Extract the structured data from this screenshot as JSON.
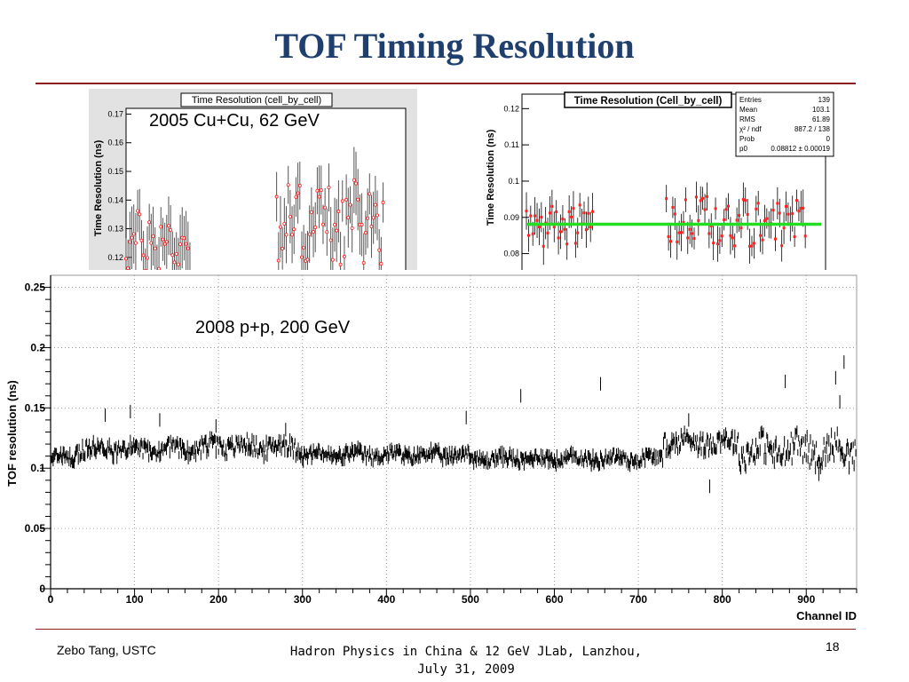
{
  "slide": {
    "title": "TOF Timing Resolution",
    "footer_left": "Zebo Tang, USTC",
    "footer_center_line1": "Hadron Physics in China & 12 GeV JLab, Lanzhou,",
    "footer_center_line2": "July 31, 2009",
    "page_number": "18"
  },
  "colors": {
    "title": "#1f3f6e",
    "rule": "#8b1f1f",
    "fit_line": "#22dd22",
    "marker_red": "#ff2020"
  },
  "chart_data": [
    {
      "type": "scatter",
      "title": "Time Resolution (cell_by_cell)",
      "annotation": "2005 Cu+Cu, 62 GeV",
      "ylabel": "Time Resolution (ns)",
      "yticks": [
        "0.17",
        "0.16",
        "0.15",
        "0.14",
        "0.13",
        "0.12"
      ],
      "ylim": [
        0.115,
        0.172
      ],
      "xlim": [
        0,
        130
      ],
      "clusters": [
        {
          "x_range": [
            0,
            30
          ],
          "center": 0.125,
          "spread": 0.012
        },
        {
          "x_range": [
            70,
            120
          ],
          "center": 0.132,
          "spread": 0.015
        }
      ],
      "error_bar": 0.009,
      "marker": "open-circle-red"
    },
    {
      "type": "scatter",
      "title": "Time Resolution (Cell_by_cell)",
      "ylabel": "Time Resolution (ns)",
      "yticks": [
        "0.12",
        "0.11",
        "0.1",
        "0.09",
        "0.08"
      ],
      "ylim": [
        0.075,
        0.124
      ],
      "xlim": [
        0,
        200
      ],
      "stats": [
        {
          "label": "Entries",
          "value": "139"
        },
        {
          "label": "Mean",
          "value": "103.1"
        },
        {
          "label": "RMS",
          "value": "61.89"
        },
        {
          "label": "χ² / ndf",
          "value": "887.2 / 138"
        },
        {
          "label": "Prob",
          "value": "0"
        },
        {
          "label": "p0",
          "value": "0.08812 ± 0.00019"
        }
      ],
      "fit": {
        "p0": 0.08812
      },
      "clusters": [
        {
          "x_range": [
            0,
            45
          ],
          "center": 0.088,
          "spread": 0.006
        },
        {
          "x_range": [
            95,
            190
          ],
          "center": 0.089,
          "spread": 0.007
        }
      ],
      "error_bar": 0.004,
      "marker": "filled-square-red"
    },
    {
      "type": "scatter",
      "annotation": "2008 p+p, 200 GeV",
      "ylabel": "TOF resolution (ns)",
      "xlabel": "Channel ID",
      "xlim": [
        0,
        960
      ],
      "ylim": [
        0,
        0.26
      ],
      "xticks": [
        0,
        100,
        200,
        300,
        400,
        500,
        600,
        700,
        800,
        900
      ],
      "yticks": [
        0,
        0.05,
        0.1,
        0.15,
        0.2,
        0.25
      ],
      "ytick_labels": [
        "0",
        "0.05",
        "0.1",
        "0.15",
        "0.2",
        "0.25"
      ],
      "grid": true,
      "segments": [
        {
          "x_range": [
            0,
            30
          ],
          "center": 0.109,
          "spread": 0.004
        },
        {
          "x_range": [
            30,
            190
          ],
          "center": 0.116,
          "spread": 0.006
        },
        {
          "x_range": [
            190,
            300
          ],
          "center": 0.118,
          "spread": 0.007
        },
        {
          "x_range": [
            300,
            500
          ],
          "center": 0.111,
          "spread": 0.005
        },
        {
          "x_range": [
            500,
            730
          ],
          "center": 0.108,
          "spread": 0.005
        },
        {
          "x_range": [
            730,
            820
          ],
          "center": 0.122,
          "spread": 0.008
        },
        {
          "x_range": [
            820,
            960
          ],
          "center": 0.115,
          "spread": 0.012
        }
      ],
      "outliers": [
        {
          "x": 65,
          "y": 0.144
        },
        {
          "x": 95,
          "y": 0.147
        },
        {
          "x": 130,
          "y": 0.14
        },
        {
          "x": 197,
          "y": 0.135
        },
        {
          "x": 280,
          "y": 0.132
        },
        {
          "x": 495,
          "y": 0.142
        },
        {
          "x": 560,
          "y": 0.16
        },
        {
          "x": 655,
          "y": 0.17
        },
        {
          "x": 785,
          "y": 0.085
        },
        {
          "x": 875,
          "y": 0.172
        },
        {
          "x": 935,
          "y": 0.175
        },
        {
          "x": 945,
          "y": 0.188
        },
        {
          "x": 940,
          "y": 0.155
        },
        {
          "x": 915,
          "y": 0.095
        },
        {
          "x": 760,
          "y": 0.14
        }
      ],
      "error_bar": 0.004
    }
  ]
}
